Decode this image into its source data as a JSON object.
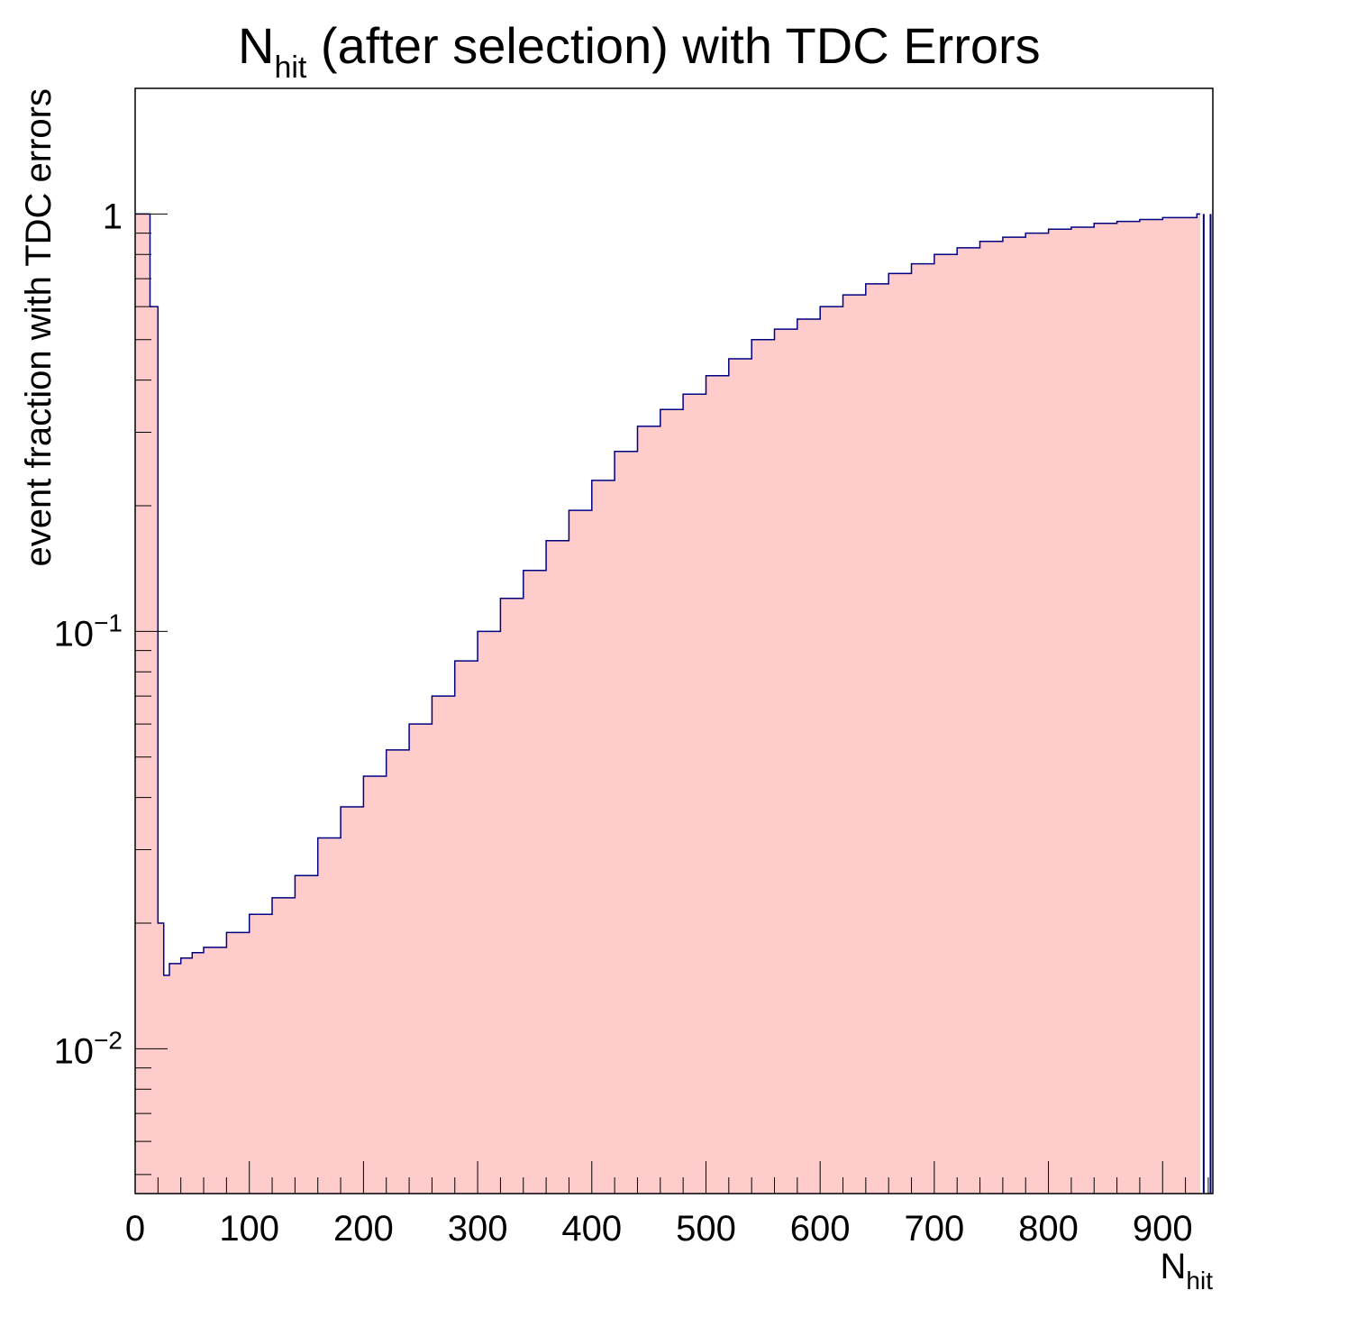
{
  "chart_data": {
    "type": "histogram",
    "title": {
      "main": "N",
      "sub": "hit",
      "rest": " (after selection) with TDC Errors"
    },
    "xlabel": {
      "main": "N",
      "sub": "hit"
    },
    "ylabel": "event fraction with TDC errors",
    "x_range": [
      0,
      944
    ],
    "y_range": [
      0.0045,
      2.0
    ],
    "y_scale": "log",
    "x_ticks": [
      {
        "value": 0,
        "label": "0"
      },
      {
        "value": 100,
        "label": "100"
      },
      {
        "value": 200,
        "label": "200"
      },
      {
        "value": 300,
        "label": "300"
      },
      {
        "value": 400,
        "label": "400"
      },
      {
        "value": 500,
        "label": "500"
      },
      {
        "value": 600,
        "label": "600"
      },
      {
        "value": 700,
        "label": "700"
      },
      {
        "value": 800,
        "label": "800"
      },
      {
        "value": 900,
        "label": "900"
      }
    ],
    "y_ticks": [
      {
        "value": 1,
        "base": "1",
        "exp": ""
      },
      {
        "value": 0.1,
        "base": "10",
        "exp": "−1"
      },
      {
        "value": 0.01,
        "base": "10",
        "exp": "−2"
      }
    ],
    "fill_color": "#ffcccc",
    "line_color": "#000080",
    "grid": false,
    "legend": "none",
    "x": [
      0,
      10,
      13,
      20,
      25,
      30,
      40,
      50,
      60,
      80,
      100,
      120,
      140,
      160,
      180,
      200,
      220,
      240,
      260,
      280,
      300,
      320,
      340,
      360,
      380,
      400,
      420,
      440,
      460,
      480,
      500,
      520,
      540,
      560,
      580,
      600,
      620,
      640,
      660,
      680,
      700,
      720,
      740,
      760,
      780,
      800,
      820,
      840,
      860,
      880,
      900,
      930
    ],
    "values": [
      1.0,
      1.0,
      0.6,
      0.02,
      0.015,
      0.016,
      0.0165,
      0.017,
      0.0175,
      0.019,
      0.021,
      0.023,
      0.026,
      0.032,
      0.038,
      0.045,
      0.052,
      0.06,
      0.07,
      0.085,
      0.1,
      0.12,
      0.14,
      0.165,
      0.195,
      0.23,
      0.27,
      0.31,
      0.34,
      0.37,
      0.41,
      0.45,
      0.5,
      0.53,
      0.56,
      0.6,
      0.64,
      0.68,
      0.72,
      0.76,
      0.8,
      0.83,
      0.86,
      0.88,
      0.9,
      0.92,
      0.93,
      0.95,
      0.96,
      0.97,
      0.98,
      1.0
    ],
    "spike_bins": [
      {
        "x": 936,
        "value": 1.0
      },
      {
        "x": 942,
        "value": 1.0
      }
    ]
  }
}
